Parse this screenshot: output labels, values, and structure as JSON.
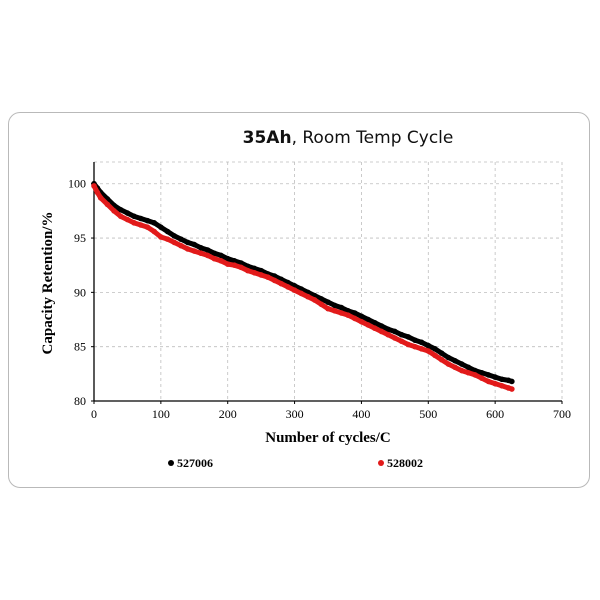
{
  "chart_data": {
    "type": "line",
    "title_bold": "35Ah",
    "title_rest": ", Room Temp Cycle",
    "xlabel": "Number of cycles/C",
    "ylabel": "Capacity Retention/%",
    "xlim": [
      0,
      700
    ],
    "ylim": [
      80,
      102
    ],
    "xticks": [
      0,
      100,
      200,
      300,
      400,
      500,
      600,
      700
    ],
    "yticks": [
      80,
      85,
      90,
      95,
      100
    ],
    "grid": true,
    "legend_position": "bottom",
    "series": [
      {
        "name": "527006",
        "color": "#000000",
        "x": [
          0,
          5,
          10,
          20,
          30,
          40,
          50,
          60,
          70,
          80,
          90,
          100,
          110,
          120,
          130,
          140,
          150,
          160,
          170,
          180,
          190,
          200,
          210,
          220,
          230,
          240,
          250,
          260,
          270,
          280,
          290,
          300,
          310,
          320,
          330,
          340,
          350,
          360,
          370,
          380,
          390,
          400,
          410,
          420,
          430,
          440,
          450,
          460,
          470,
          480,
          490,
          500,
          510,
          520,
          530,
          540,
          550,
          560,
          570,
          580,
          590,
          600,
          610,
          620,
          625
        ],
        "y": [
          100.0,
          99.6,
          99.2,
          98.6,
          98.0,
          97.6,
          97.3,
          97.0,
          96.8,
          96.6,
          96.4,
          96.0,
          95.6,
          95.2,
          94.9,
          94.6,
          94.4,
          94.1,
          93.9,
          93.6,
          93.4,
          93.1,
          92.9,
          92.7,
          92.4,
          92.2,
          92.0,
          91.7,
          91.5,
          91.2,
          90.9,
          90.6,
          90.3,
          90.0,
          89.7,
          89.4,
          89.1,
          88.8,
          88.6,
          88.3,
          88.1,
          87.8,
          87.5,
          87.2,
          86.9,
          86.6,
          86.4,
          86.1,
          85.9,
          85.6,
          85.4,
          85.1,
          84.8,
          84.4,
          84.0,
          83.7,
          83.4,
          83.1,
          82.8,
          82.6,
          82.4,
          82.2,
          82.0,
          81.9,
          81.8
        ]
      },
      {
        "name": "528002",
        "color": "#e21a1a",
        "x": [
          0,
          5,
          10,
          20,
          30,
          40,
          50,
          60,
          70,
          80,
          90,
          100,
          110,
          120,
          130,
          140,
          150,
          160,
          170,
          180,
          190,
          200,
          210,
          220,
          230,
          240,
          250,
          260,
          270,
          280,
          290,
          300,
          310,
          320,
          330,
          340,
          350,
          360,
          370,
          380,
          390,
          400,
          410,
          420,
          430,
          440,
          450,
          460,
          470,
          480,
          490,
          500,
          510,
          520,
          530,
          540,
          550,
          560,
          570,
          580,
          590,
          600,
          610,
          620,
          625
        ],
        "y": [
          99.8,
          99.2,
          98.7,
          98.1,
          97.5,
          97.0,
          96.7,
          96.4,
          96.2,
          96.0,
          95.6,
          95.1,
          94.9,
          94.6,
          94.3,
          94.0,
          93.8,
          93.6,
          93.4,
          93.1,
          92.9,
          92.6,
          92.5,
          92.3,
          92.0,
          91.8,
          91.6,
          91.4,
          91.1,
          90.8,
          90.5,
          90.2,
          89.9,
          89.6,
          89.3,
          88.9,
          88.5,
          88.3,
          88.1,
          87.9,
          87.6,
          87.3,
          87.0,
          86.7,
          86.4,
          86.1,
          85.8,
          85.5,
          85.2,
          85.0,
          84.8,
          84.6,
          84.2,
          83.8,
          83.4,
          83.1,
          82.8,
          82.6,
          82.4,
          82.1,
          81.8,
          81.6,
          81.4,
          81.2,
          81.1
        ]
      }
    ]
  }
}
